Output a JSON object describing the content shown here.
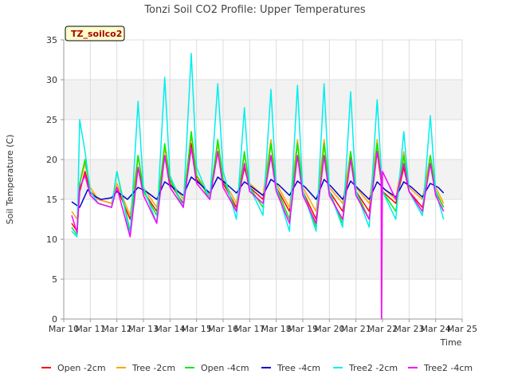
{
  "chart_data": {
    "type": "line",
    "title": "Tonzi Soil CO2 Profile: Upper Temperatures",
    "badge": "TZ_soilco2",
    "xlabel": "Time",
    "ylabel": "Soil Temperature (C)",
    "ylim": [
      0,
      35
    ],
    "yticks": [
      0,
      5,
      10,
      15,
      20,
      25,
      30,
      35
    ],
    "xlim": [
      10,
      25
    ],
    "xticks": [
      {
        "v": 10,
        "label": "Mar 10"
      },
      {
        "v": 11,
        "label": "Mar 11"
      },
      {
        "v": 12,
        "label": "Mar 12"
      },
      {
        "v": 13,
        "label": "Mar 13"
      },
      {
        "v": 14,
        "label": "Mar 14"
      },
      {
        "v": 15,
        "label": "Mar 15"
      },
      {
        "v": 16,
        "label": "Mar 16"
      },
      {
        "v": 17,
        "label": "Mar 17"
      },
      {
        "v": 18,
        "label": "Mar 18"
      },
      {
        "v": 19,
        "label": "Mar 19"
      },
      {
        "v": 20,
        "label": "Mar 20"
      },
      {
        "v": 21,
        "label": "Mar 21"
      },
      {
        "v": 22,
        "label": "Mar 22"
      },
      {
        "v": 23,
        "label": "Mar 23"
      },
      {
        "v": 24,
        "label": "Mar 24"
      },
      {
        "v": 25,
        "label": "Mar 25"
      }
    ],
    "grid": true,
    "legend_position": "bottom",
    "series": [
      {
        "name": "Open -2cm",
        "color": "#ff0000",
        "x": [
          10.3,
          10.5,
          10.6,
          10.8,
          11.0,
          11.3,
          11.8,
          12.0,
          12.5,
          12.8,
          13.0,
          13.5,
          13.8,
          14.0,
          14.5,
          14.8,
          15.0,
          15.5,
          15.8,
          16.0,
          16.5,
          16.8,
          17.0,
          17.5,
          17.8,
          18.0,
          18.5,
          18.8,
          19.0,
          19.5,
          19.8,
          20.0,
          20.5,
          20.8,
          21.0,
          21.5,
          21.8,
          22.0,
          22.5,
          22.8,
          23.0,
          23.5,
          23.8,
          24.0,
          24.3
        ],
        "y": [
          12.0,
          11.0,
          16.0,
          18.5,
          16.0,
          15.0,
          14.5,
          16.5,
          12.5,
          19.0,
          16.0,
          13.5,
          20.5,
          17.0,
          14.5,
          22.0,
          17.5,
          15.5,
          21.0,
          17.0,
          14.0,
          19.0,
          16.5,
          15.0,
          20.5,
          16.5,
          13.5,
          20.5,
          16.0,
          12.5,
          20.5,
          16.0,
          13.5,
          20.5,
          16.0,
          13.5,
          21.0,
          16.0,
          14.5,
          19.0,
          16.0,
          14.0,
          19.5,
          16.0,
          14.0
        ]
      },
      {
        "name": "Tree -2cm",
        "color": "#ffa500",
        "x": [
          10.3,
          10.5,
          10.6,
          10.8,
          11.0,
          11.3,
          11.8,
          12.0,
          12.5,
          12.8,
          13.0,
          13.5,
          13.8,
          14.0,
          14.5,
          14.8,
          15.0,
          15.5,
          15.8,
          16.0,
          16.5,
          16.8,
          17.0,
          17.5,
          17.8,
          18.0,
          18.5,
          18.8,
          19.0,
          19.5,
          19.8,
          20.0,
          20.5,
          20.8,
          21.0,
          21.5,
          21.8,
          22.0,
          22.5,
          22.8,
          23.0,
          23.5,
          23.8,
          24.0,
          24.3
        ],
        "y": [
          13.5,
          12.5,
          17.0,
          19.5,
          16.5,
          15.0,
          14.5,
          17.0,
          13.0,
          20.5,
          16.5,
          14.0,
          21.5,
          17.5,
          15.0,
          23.0,
          18.0,
          15.5,
          22.0,
          17.5,
          14.5,
          20.5,
          17.0,
          15.5,
          22.5,
          17.0,
          14.0,
          22.5,
          16.5,
          13.5,
          22.5,
          16.5,
          14.5,
          21.0,
          16.5,
          14.5,
          22.5,
          16.5,
          15.0,
          21.0,
          16.5,
          15.0,
          20.5,
          16.5,
          14.5
        ]
      },
      {
        "name": "Open -4cm",
        "color": "#00ee00",
        "x": [
          10.3,
          10.5,
          10.6,
          10.8,
          11.0,
          11.3,
          11.8,
          12.0,
          12.5,
          12.8,
          13.0,
          13.5,
          13.8,
          14.0,
          14.5,
          14.8,
          15.0,
          15.5,
          15.8,
          16.0,
          16.5,
          16.8,
          17.0,
          17.5,
          17.8,
          18.0,
          18.5,
          18.8,
          19.0,
          19.5,
          19.8,
          20.0,
          20.5,
          20.8,
          21.0,
          21.5,
          21.8,
          22.0,
          22.5,
          22.8,
          23.0,
          23.5,
          23.8,
          24.0,
          24.3
        ],
        "y": [
          11.5,
          10.5,
          17.0,
          20.0,
          16.0,
          14.5,
          14.0,
          18.5,
          11.0,
          20.5,
          16.0,
          13.0,
          22.0,
          17.5,
          14.0,
          23.5,
          18.0,
          15.0,
          22.5,
          17.5,
          13.5,
          21.0,
          16.5,
          14.0,
          22.0,
          16.5,
          12.5,
          22.0,
          16.0,
          11.5,
          22.0,
          16.0,
          12.0,
          21.0,
          16.0,
          12.5,
          22.0,
          16.0,
          13.5,
          20.5,
          16.0,
          13.0,
          20.5,
          16.0,
          14.0
        ]
      },
      {
        "name": "Tree -4cm",
        "color": "#0000cc",
        "x": [
          10.3,
          10.6,
          10.9,
          11.1,
          11.4,
          11.8,
          12.0,
          12.4,
          12.8,
          13.1,
          13.5,
          13.8,
          14.1,
          14.5,
          14.8,
          15.1,
          15.5,
          15.8,
          16.1,
          16.5,
          16.8,
          17.1,
          17.5,
          17.8,
          18.1,
          18.5,
          18.8,
          19.1,
          19.5,
          19.8,
          20.1,
          20.5,
          20.8,
          21.1,
          21.5,
          21.8,
          22.1,
          22.5,
          22.8,
          23.1,
          23.5,
          23.8,
          24.1,
          24.3
        ],
        "y": [
          14.7,
          14.0,
          16.2,
          15.5,
          15.0,
          15.2,
          16.0,
          15.0,
          16.5,
          16.0,
          15.0,
          17.2,
          16.5,
          15.5,
          17.8,
          17.0,
          15.8,
          17.8,
          17.0,
          15.8,
          17.2,
          16.5,
          15.5,
          17.5,
          16.8,
          15.5,
          17.3,
          16.5,
          15.0,
          17.5,
          16.5,
          15.0,
          17.3,
          16.3,
          15.0,
          17.2,
          16.2,
          15.3,
          17.2,
          16.5,
          15.3,
          17.0,
          16.5,
          15.8
        ]
      },
      {
        "name": "Tree2 -2cm",
        "color": "#00eeee",
        "x": [
          10.3,
          10.5,
          10.6,
          10.8,
          11.0,
          11.3,
          11.8,
          12.0,
          12.5,
          12.8,
          13.0,
          13.5,
          13.8,
          14.0,
          14.5,
          14.8,
          15.0,
          15.5,
          15.8,
          16.0,
          16.5,
          16.8,
          17.0,
          17.5,
          17.8,
          18.0,
          18.5,
          18.8,
          19.0,
          19.5,
          19.8,
          20.0,
          20.5,
          20.8,
          21.0,
          21.5,
          21.8,
          22.0,
          22.5,
          22.8,
          23.0,
          23.5,
          23.8,
          24.0,
          24.3
        ],
        "y": [
          11.0,
          10.3,
          25.0,
          21.0,
          16.0,
          14.5,
          14.0,
          18.5,
          10.5,
          27.3,
          16.5,
          12.0,
          30.3,
          18.0,
          14.0,
          33.3,
          19.0,
          15.0,
          29.5,
          18.5,
          12.5,
          26.5,
          16.5,
          13.0,
          28.8,
          16.5,
          11.0,
          29.3,
          16.0,
          11.0,
          29.5,
          16.0,
          11.5,
          28.5,
          16.0,
          11.5,
          27.5,
          16.0,
          12.5,
          23.5,
          16.0,
          13.0,
          25.5,
          16.0,
          12.5
        ]
      },
      {
        "name": "Tree2 -4cm",
        "color": "#ff00ff",
        "x": [
          10.3,
          10.5,
          10.6,
          10.8,
          11.0,
          11.3,
          11.8,
          12.0,
          12.5,
          12.8,
          13.0,
          13.5,
          13.8,
          14.0,
          14.5,
          14.8,
          15.0,
          15.5,
          15.8,
          16.0,
          16.5,
          16.8,
          17.0,
          17.5,
          17.8,
          18.0,
          18.5,
          18.8,
          19.0,
          19.5,
          19.8,
          20.0,
          20.5,
          20.8,
          21.0,
          21.5,
          21.8,
          21.95,
          21.96,
          22.0,
          22.5,
          22.8,
          23.0,
          23.5,
          23.8,
          24.0,
          24.3
        ],
        "y": [
          13.0,
          10.8,
          16.5,
          18.0,
          15.5,
          14.5,
          14.0,
          16.5,
          10.3,
          19.0,
          15.5,
          12.0,
          20.5,
          16.5,
          14.0,
          21.5,
          17.0,
          15.0,
          21.0,
          16.5,
          13.5,
          19.5,
          16.0,
          14.5,
          20.5,
          16.0,
          12.0,
          20.5,
          15.5,
          12.0,
          20.5,
          15.5,
          12.5,
          20.0,
          15.5,
          12.5,
          21.0,
          18.0,
          0.0,
          18.5,
          15.0,
          19.5,
          16.0,
          13.5,
          19.5,
          15.5,
          13.5
        ]
      }
    ]
  }
}
